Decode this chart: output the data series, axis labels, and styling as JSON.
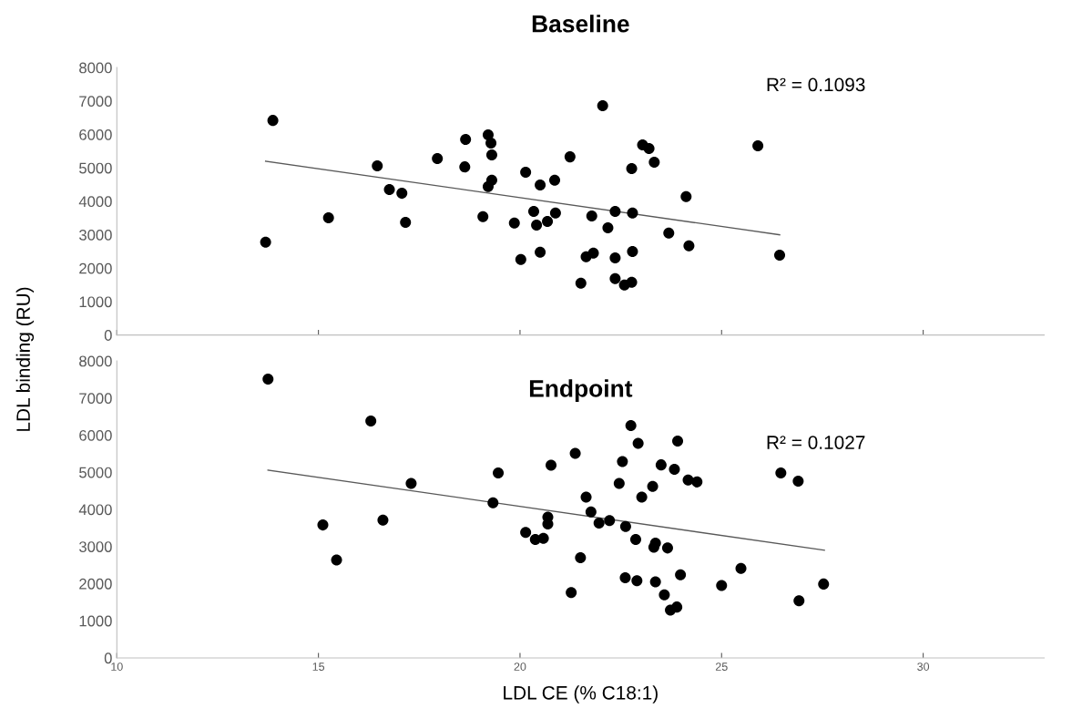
{
  "chart_data": [
    {
      "type": "scatter",
      "title": "Baseline",
      "ylabel": "LDL binding (RU)",
      "xlim": [
        10,
        33
      ],
      "xticks": [
        10,
        15,
        20,
        25,
        30
      ],
      "ylim": [
        0,
        8000
      ],
      "yticks": [
        0,
        1000,
        2000,
        3000,
        4000,
        5000,
        6000,
        7000,
        8000
      ],
      "tick_labels": "y",
      "grid": false,
      "legend": false,
      "annotations": [
        "R² = 0.1093"
      ],
      "series": [
        {
          "marker": "circle",
          "color": "#000000",
          "x": [
            13.69,
            13.87,
            15.25,
            16.46,
            16.76,
            17.07,
            17.16,
            17.95,
            18.65,
            18.63,
            19.21,
            19.28,
            19.3,
            19.3,
            19.21,
            19.08,
            19.86,
            20.02,
            20.14,
            20.34,
            20.41,
            20.5,
            20.5,
            20.68,
            20.86,
            20.88,
            21.24,
            21.51,
            21.64,
            21.78,
            21.82,
            22.05,
            22.18,
            22.36,
            22.36,
            22.36,
            22.59,
            22.77,
            22.77,
            22.79,
            22.79,
            23.04,
            23.2,
            23.33,
            23.69,
            24.12,
            24.19,
            25.9,
            26.44
          ],
          "values": [
            2780,
            6420,
            3510,
            5060,
            4350,
            4240,
            3370,
            5280,
            5850,
            5030,
            5990,
            5740,
            5390,
            4630,
            4440,
            3540,
            3350,
            2260,
            4870,
            3700,
            3290,
            2480,
            4490,
            3400,
            4630,
            3650,
            5330,
            1550,
            2340,
            3560,
            2450,
            6860,
            3210,
            3700,
            2310,
            1690,
            1500,
            1580,
            4980,
            2500,
            3650,
            5690,
            5580,
            5170,
            3050,
            4140,
            2670,
            5660,
            2390
          ]
        },
        {
          "type": "line",
          "marker": "none",
          "color": "#595959",
          "line_style": "solid",
          "x": [
            13.69,
            26.44
          ],
          "values": [
            5200,
            3000
          ]
        }
      ]
    },
    {
      "type": "scatter",
      "title": "Endpoint",
      "xlabel": "LDL CE (% C18:1)",
      "xlim": [
        10,
        33
      ],
      "xticks": [
        10,
        15,
        20,
        25,
        30
      ],
      "ylim": [
        0,
        8000
      ],
      "yticks": [
        0,
        1000,
        2000,
        3000,
        4000,
        5000,
        6000,
        7000,
        8000
      ],
      "grid": false,
      "legend": false,
      "annotations": [
        "R² = 0.1027"
      ],
      "series": [
        {
          "marker": "circle",
          "color": "#000000",
          "x": [
            13.75,
            16.3,
            17.3,
            19.46,
            19.33,
            15.11,
            16.6,
            15.45,
            20.77,
            21.37,
            21.64,
            21.76,
            20.69,
            20.69,
            20.14,
            20.38,
            20.58,
            21.5,
            21.27,
            21.96,
            22.22,
            22.62,
            22.46,
            22.54,
            22.75,
            22.93,
            23.02,
            23.29,
            23.5,
            23.83,
            23.91,
            24.17,
            24.39,
            22.87,
            23.36,
            23.32,
            23.66,
            22.61,
            22.9,
            23.36,
            23.98,
            23.58,
            23.73,
            23.89,
            25.0,
            25.48,
            26.47,
            26.9,
            26.92,
            27.53
          ],
          "values": [
            7510,
            6380,
            4700,
            4980,
            4180,
            3580,
            3710,
            2640,
            5190,
            5510,
            4330,
            3930,
            3790,
            3610,
            3380,
            3190,
            3220,
            2700,
            1760,
            3630,
            3700,
            3540,
            4700,
            5290,
            6260,
            5780,
            4330,
            4620,
            5200,
            5080,
            5840,
            4790,
            4740,
            3190,
            3090,
            2980,
            2960,
            2160,
            2080,
            2050,
            2240,
            1700,
            1290,
            1370,
            1950,
            2410,
            4980,
            4760,
            1540,
            1990
          ]
        },
        {
          "type": "line",
          "marker": "none",
          "color": "#595959",
          "line_style": "solid",
          "x": [
            13.75,
            27.55
          ],
          "values": [
            5060,
            2900
          ]
        }
      ]
    }
  ]
}
